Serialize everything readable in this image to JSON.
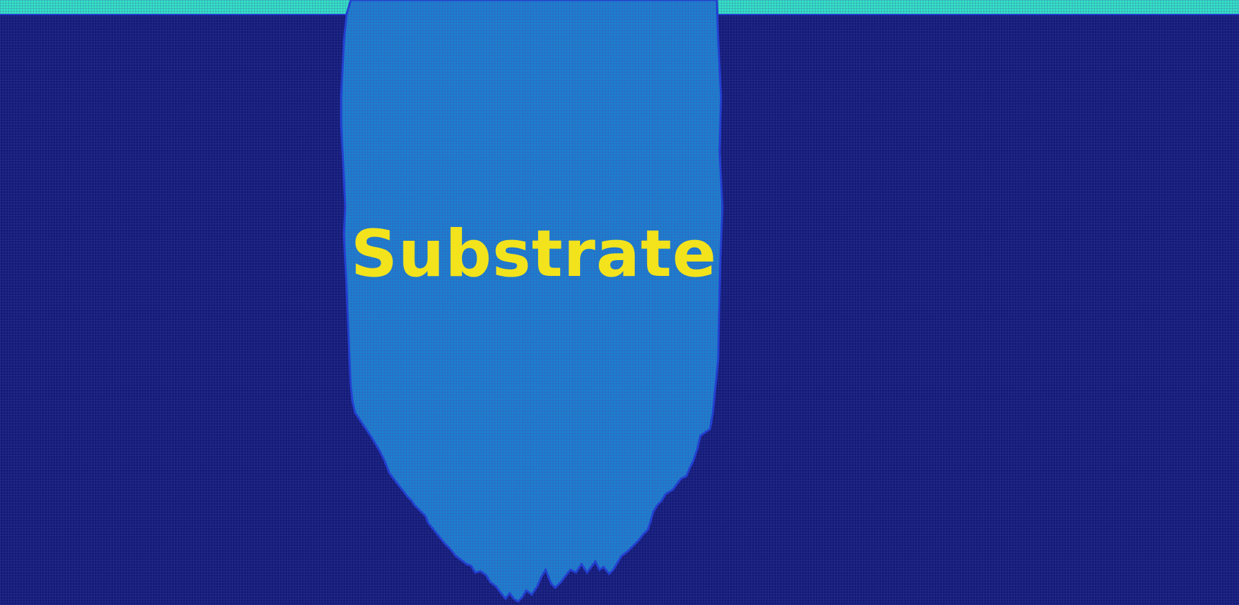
{
  "diagram": {
    "label": "Substrate",
    "colors": {
      "background": "#141a78",
      "surface_strip": "#34e2c4",
      "substrate_fill": "#1e7fcf",
      "substrate_edge": "#1f3ed6",
      "label_text": "#f2e31c",
      "grid_line": "#3e48a8"
    }
  }
}
